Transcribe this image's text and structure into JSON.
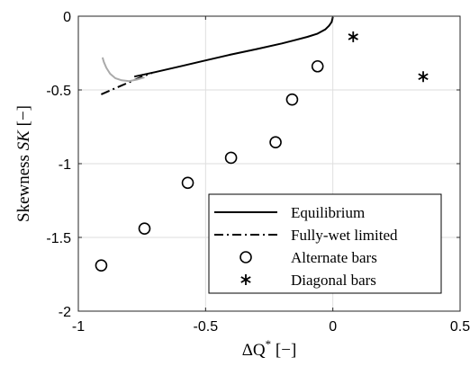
{
  "chart_data": {
    "type": "scatter",
    "xlabel": {
      "prefix": "ΔQ",
      "sup": "*",
      "unit": " [−]"
    },
    "ylabel": {
      "prefix": "Skewness ",
      "var": "SK",
      "unit": " [−]"
    },
    "xlim": [
      -1,
      0.5
    ],
    "ylim": [
      -2,
      0
    ],
    "xticks": [
      -1,
      -0.5,
      0,
      0.5
    ],
    "xtick_labels": [
      "-1",
      "-0.5",
      "0",
      "0.5"
    ],
    "yticks": [
      0,
      -0.5,
      -1,
      -1.5,
      -2
    ],
    "ytick_labels": [
      "0",
      "-0.5",
      "-1",
      "-1.5",
      "-2"
    ],
    "grid": true,
    "legend_position": "bottom-right",
    "series": [
      {
        "name": "Equilibrium",
        "kind": "line",
        "style": "solid",
        "color": "#000000",
        "x": [
          -0.78,
          -0.7,
          -0.6,
          -0.5,
          -0.4,
          -0.3,
          -0.2,
          -0.15,
          -0.1,
          -0.06,
          -0.03,
          -0.015,
          -0.005,
          0.0
        ],
        "y": [
          -0.41,
          -0.38,
          -0.34,
          -0.3,
          -0.26,
          -0.223,
          -0.185,
          -0.163,
          -0.14,
          -0.118,
          -0.09,
          -0.065,
          -0.04,
          -0.005
        ]
      },
      {
        "name": "Fully-wet limited",
        "kind": "line",
        "style": "dashdot",
        "color": "#000000",
        "x": [
          -0.91,
          -0.87,
          -0.83,
          -0.79,
          -0.75,
          -0.71
        ],
        "y": [
          -0.53,
          -0.5,
          -0.47,
          -0.44,
          -0.41,
          -0.385
        ]
      },
      {
        "name": "",
        "kind": "line",
        "style": "solid",
        "color": "#aaaaaa",
        "x": [
          -0.905,
          -0.9,
          -0.89,
          -0.875,
          -0.855,
          -0.83,
          -0.8,
          -0.77,
          -0.74
        ],
        "y": [
          -0.28,
          -0.31,
          -0.35,
          -0.39,
          -0.42,
          -0.435,
          -0.44,
          -0.43,
          -0.415
        ]
      },
      {
        "name": "Alternate bars",
        "kind": "marker",
        "marker": "circle",
        "color": "#000000",
        "x": [
          -0.91,
          -0.74,
          -0.57,
          -0.4,
          -0.225,
          -0.16,
          -0.06
        ],
        "y": [
          -1.69,
          -1.44,
          -1.13,
          -0.96,
          -0.855,
          -0.565,
          -0.34
        ]
      },
      {
        "name": "Diagonal bars",
        "kind": "marker",
        "marker": "asterisk",
        "color": "#000000",
        "x": [
          0.08,
          0.355
        ],
        "y": [
          -0.14,
          -0.41
        ]
      }
    ]
  }
}
